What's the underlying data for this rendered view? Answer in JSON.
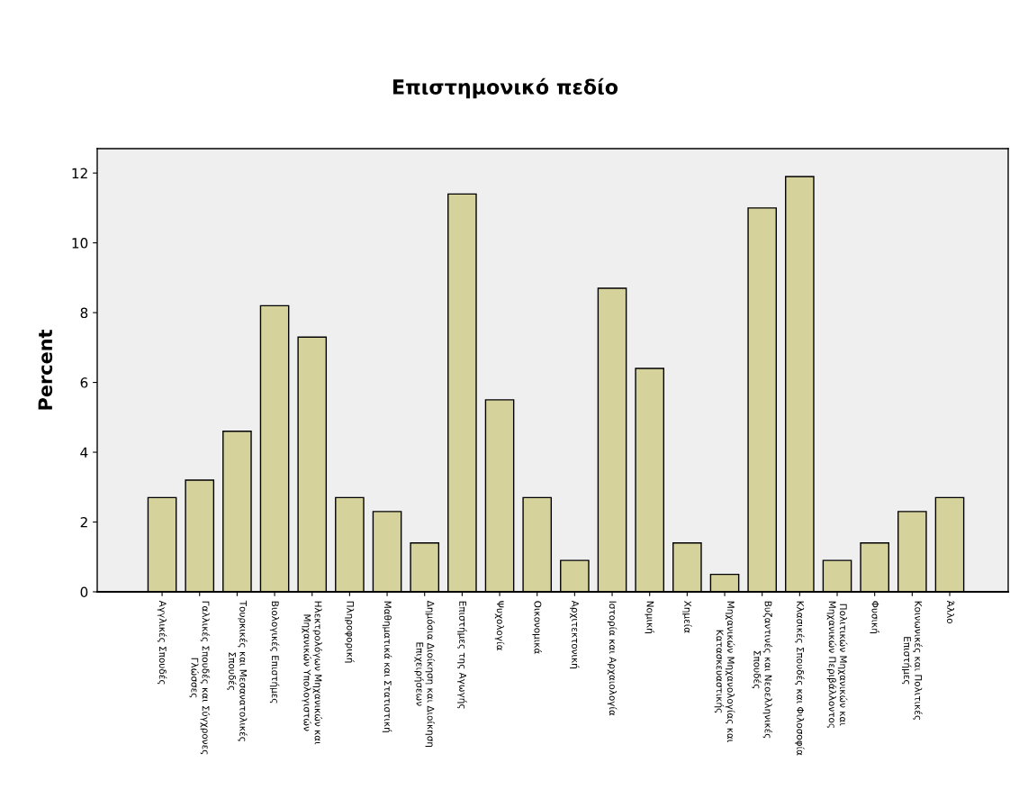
{
  "chart_data": {
    "type": "bar",
    "title": "Επιστημονικό πεδίο",
    "ylabel": "Percent",
    "categories": [
      "Αγγλικές Σπουδές",
      "Γαλλικές Σπουδές και Σύγχρονες\nΓλώσσες",
      "Τουρκικές και Μεσανατολικές\nΣπουδές",
      "Βιολογικές Επιστήμες",
      "Ηλεκτρολόγων Μηχανικών και\nΜηχανικών Υπολογιστών",
      "Πληροφορική",
      "Μαθηματικά και Στατιστική",
      "Δημόσια Διοίκηση και Διοίκηση\nΕπιχειρήσεων",
      "Επιστήμες της Αγωγής",
      "Ψυχολογία",
      "Οικονομικά",
      "Αρχιτεκτονική",
      "Ιστορία και Αρχαιολογία",
      "Νομική",
      "Χημεία",
      "Μηχανικών Μηχανολογίας και\nΚατασκευαστικής",
      "Βυζαντινές και Νεοελληνικές\nΣπουδές",
      "Κλασικές Σπουδές και Φιλοσοφία",
      "Πολιτικών Μηχανικών και\nΜηχανικών Περιβάλλοντος",
      "Φυσική",
      "Κοινωνικές και Πολιτικές\nΕπιστήμες",
      "Άλλο"
    ],
    "values": [
      2.7,
      3.2,
      4.6,
      8.2,
      7.3,
      2.7,
      2.3,
      1.4,
      11.4,
      5.5,
      2.7,
      0.9,
      8.7,
      6.4,
      1.4,
      0.5,
      11.0,
      11.9,
      0.9,
      1.4,
      2.3,
      2.7
    ],
    "color": "#d6d29b",
    "ylim": [
      0,
      12.7
    ],
    "yticks": [
      0,
      2,
      4,
      6,
      8,
      10,
      12
    ],
    "grid": false,
    "legend": false
  }
}
